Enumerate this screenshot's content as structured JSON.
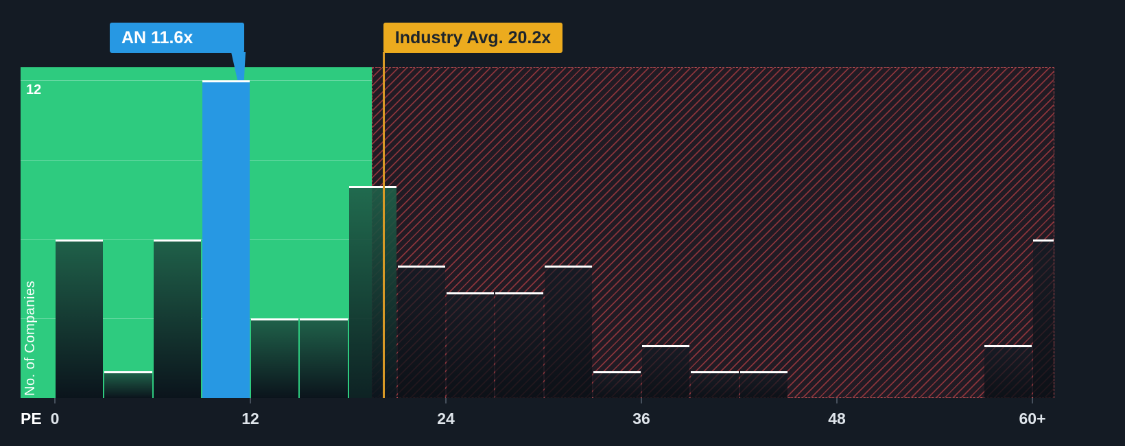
{
  "tooltips": {
    "company": "AN 11.6x",
    "industry": "Industry Avg. 20.2x"
  },
  "y_axis": {
    "top_label": "12",
    "title": "No. of Companies"
  },
  "x_axis": {
    "title": "PE"
  },
  "colors": {
    "background": "#141b24",
    "below_average_green": "#2ecb7f",
    "company_blue": "#2798e3",
    "industry_amber": "#ecab1e",
    "hatch_red": "#e24a4e",
    "bar_top_white": "#ffffff"
  },
  "chart_data": {
    "type": "bar",
    "title": "",
    "xlabel": "PE",
    "ylabel": "No. of Companies",
    "ylim": [
      0,
      12
    ],
    "grid_values": [
      3,
      6,
      9,
      12
    ],
    "x_tick_values": [
      0,
      12,
      24,
      36,
      48,
      60
    ],
    "x_tick_labels": [
      "0",
      "12",
      "24",
      "36",
      "48",
      "60+"
    ],
    "bin_width_pe": 3,
    "bins": [
      {
        "pe_start": 0,
        "count": 6,
        "zone": "below_avg"
      },
      {
        "pe_start": 3,
        "count": 1,
        "zone": "below_avg"
      },
      {
        "pe_start": 6,
        "count": 6,
        "zone": "below_avg"
      },
      {
        "pe_start": 9,
        "count": 12,
        "zone": "below_avg",
        "highlight": "company"
      },
      {
        "pe_start": 12,
        "count": 3,
        "zone": "below_avg"
      },
      {
        "pe_start": 15,
        "count": 3,
        "zone": "below_avg"
      },
      {
        "pe_start": 18,
        "count": 8,
        "zone": "boundary"
      },
      {
        "pe_start": 21,
        "count": 5,
        "zone": "above_avg"
      },
      {
        "pe_start": 24,
        "count": 4,
        "zone": "above_avg"
      },
      {
        "pe_start": 27,
        "count": 4,
        "zone": "above_avg"
      },
      {
        "pe_start": 30,
        "count": 5,
        "zone": "above_avg"
      },
      {
        "pe_start": 33,
        "count": 1,
        "zone": "above_avg"
      },
      {
        "pe_start": 36,
        "count": 2,
        "zone": "above_avg"
      },
      {
        "pe_start": 39,
        "count": 1,
        "zone": "above_avg"
      },
      {
        "pe_start": 42,
        "count": 1,
        "zone": "above_avg"
      },
      {
        "pe_start": 45,
        "count": 0,
        "zone": "above_avg"
      },
      {
        "pe_start": 48,
        "count": 0,
        "zone": "above_avg"
      },
      {
        "pe_start": 51,
        "count": 0,
        "zone": "above_avg"
      },
      {
        "pe_start": 54,
        "count": 0,
        "zone": "above_avg"
      },
      {
        "pe_start": 57,
        "count": 2,
        "zone": "above_avg"
      },
      {
        "pe_start": 60,
        "count": 6,
        "zone": "above_avg",
        "open_ended": true
      }
    ],
    "markers": [
      {
        "label": "AN 11.6x",
        "pe": 11.6,
        "type": "company"
      },
      {
        "label": "Industry Avg. 20.2x",
        "pe": 20.2,
        "type": "industry_avg"
      }
    ],
    "zones": {
      "below_average": {
        "max_pe": 19.5,
        "style": "solid-green"
      },
      "above_average": {
        "min_pe": 19.5,
        "style": "red-hatch"
      }
    }
  }
}
